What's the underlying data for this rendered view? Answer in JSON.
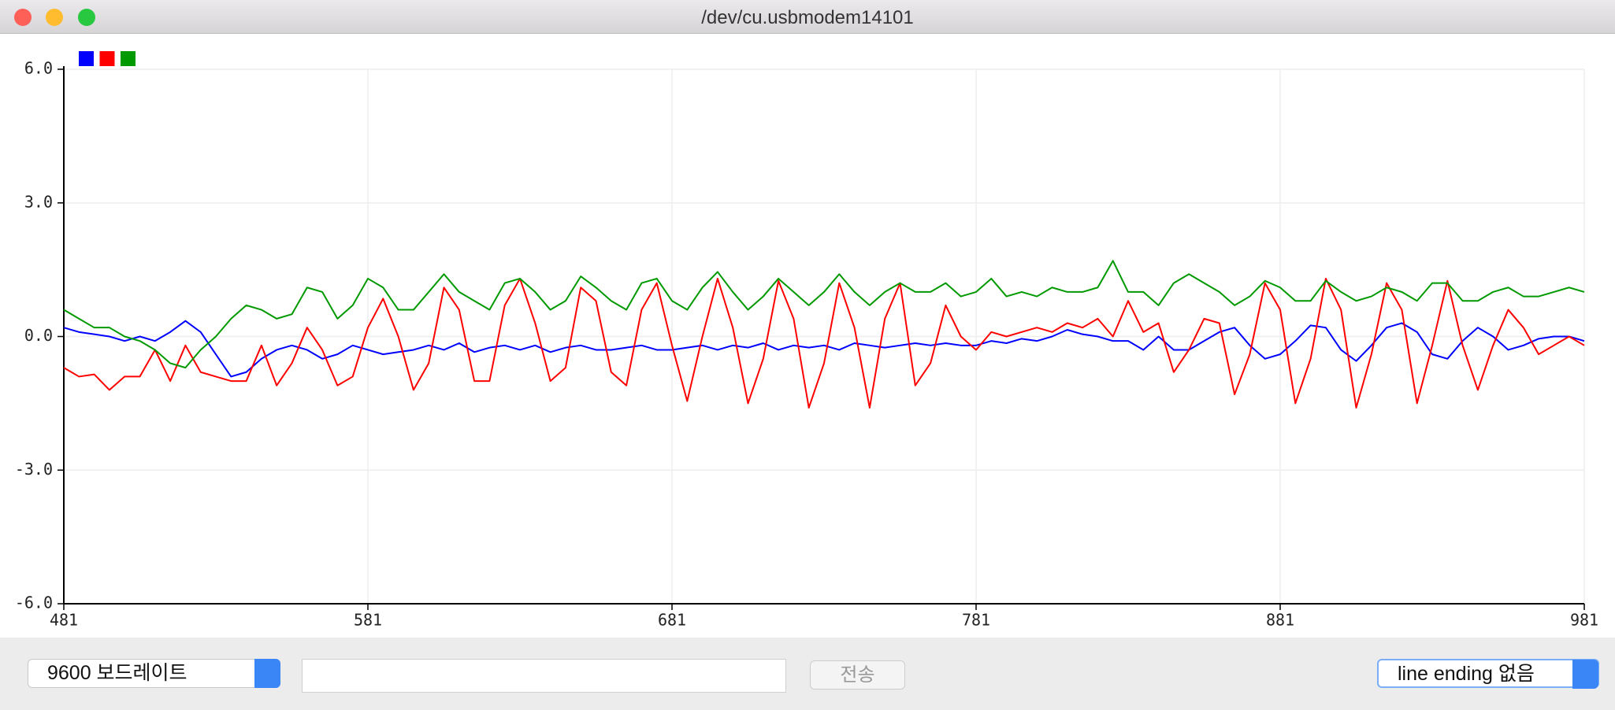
{
  "window": {
    "title": "/dev/cu.usbmodem14101"
  },
  "controls": {
    "baud": "9600 보드레이트",
    "send": "전송",
    "line_ending": "line ending 없음"
  },
  "chart_data": {
    "type": "line",
    "x": [
      481,
      486,
      491,
      496,
      501,
      506,
      511,
      516,
      521,
      526,
      531,
      536,
      541,
      546,
      551,
      556,
      561,
      566,
      571,
      576,
      581,
      586,
      591,
      596,
      601,
      606,
      611,
      616,
      621,
      626,
      631,
      636,
      641,
      646,
      651,
      656,
      661,
      666,
      671,
      676,
      681,
      686,
      691,
      696,
      701,
      706,
      711,
      716,
      721,
      726,
      731,
      736,
      741,
      746,
      751,
      756,
      761,
      766,
      771,
      776,
      781,
      786,
      791,
      796,
      801,
      806,
      811,
      816,
      821,
      826,
      831,
      836,
      841,
      846,
      851,
      856,
      861,
      866,
      871,
      876,
      881,
      886,
      891,
      896,
      901,
      906,
      911,
      916,
      921,
      926,
      931,
      936,
      941,
      946,
      951,
      956,
      961,
      966,
      971,
      976,
      981
    ],
    "series": [
      {
        "color": "#0000ff",
        "values": [
          0.2,
          0.1,
          0.05,
          0.0,
          -0.1,
          0.0,
          -0.1,
          0.1,
          0.35,
          0.1,
          -0.4,
          -0.9,
          -0.8,
          -0.5,
          -0.3,
          -0.2,
          -0.3,
          -0.5,
          -0.4,
          -0.2,
          -0.3,
          -0.4,
          -0.35,
          -0.3,
          -0.2,
          -0.3,
          -0.15,
          -0.35,
          -0.25,
          -0.2,
          -0.3,
          -0.2,
          -0.35,
          -0.25,
          -0.2,
          -0.3,
          -0.3,
          -0.25,
          -0.2,
          -0.3,
          -0.3,
          -0.25,
          -0.2,
          -0.3,
          -0.2,
          -0.25,
          -0.15,
          -0.3,
          -0.2,
          -0.25,
          -0.2,
          -0.3,
          -0.15,
          -0.2,
          -0.25,
          -0.2,
          -0.15,
          -0.2,
          -0.15,
          -0.2,
          -0.2,
          -0.1,
          -0.15,
          -0.05,
          -0.1,
          0.0,
          0.15,
          0.05,
          0.0,
          -0.1,
          -0.1,
          -0.3,
          0.0,
          -0.3,
          -0.3,
          -0.1,
          0.1,
          0.2,
          -0.2,
          -0.5,
          -0.4,
          -0.1,
          0.25,
          0.2,
          -0.3,
          -0.55,
          -0.2,
          0.2,
          0.3,
          0.1,
          -0.4,
          -0.5,
          -0.1,
          0.2,
          0.0,
          -0.3,
          -0.2,
          -0.05,
          0.0,
          0.0,
          -0.1
        ]
      },
      {
        "color": "#ff0000",
        "values": [
          -0.7,
          -0.9,
          -0.85,
          -1.2,
          -0.9,
          -0.9,
          -0.3,
          -1.0,
          -0.2,
          -0.8,
          -0.9,
          -1.0,
          -1.0,
          -0.2,
          -1.1,
          -0.6,
          0.2,
          -0.3,
          -1.1,
          -0.9,
          0.2,
          0.85,
          0.0,
          -1.2,
          -0.6,
          1.1,
          0.6,
          -1.0,
          -1.0,
          0.7,
          1.3,
          0.3,
          -1.0,
          -0.7,
          1.1,
          0.8,
          -0.8,
          -1.1,
          0.6,
          1.2,
          -0.2,
          -1.45,
          0.0,
          1.3,
          0.2,
          -1.5,
          -0.5,
          1.25,
          0.4,
          -1.6,
          -0.6,
          1.2,
          0.2,
          -1.6,
          0.4,
          1.2,
          -1.1,
          -0.6,
          0.7,
          0.0,
          -0.3,
          0.1,
          0.0,
          0.1,
          0.2,
          0.1,
          0.3,
          0.2,
          0.4,
          0.0,
          0.8,
          0.1,
          0.3,
          -0.8,
          -0.3,
          0.4,
          0.3,
          -1.3,
          -0.4,
          1.2,
          0.6,
          -1.5,
          -0.5,
          1.3,
          0.6,
          -1.6,
          -0.4,
          1.2,
          0.6,
          -1.5,
          -0.2,
          1.25,
          -0.2,
          -1.2,
          -0.2,
          0.6,
          0.2,
          -0.4,
          -0.2,
          0.0,
          -0.2
        ]
      },
      {
        "color": "#009900",
        "values": [
          0.6,
          0.4,
          0.2,
          0.2,
          0.0,
          -0.1,
          -0.3,
          -0.6,
          -0.7,
          -0.3,
          0.0,
          0.4,
          0.7,
          0.6,
          0.4,
          0.5,
          1.1,
          1.0,
          0.4,
          0.7,
          1.3,
          1.1,
          0.6,
          0.6,
          1.0,
          1.4,
          1.0,
          0.8,
          0.6,
          1.2,
          1.3,
          1.0,
          0.6,
          0.8,
          1.35,
          1.1,
          0.8,
          0.6,
          1.2,
          1.3,
          0.8,
          0.6,
          1.1,
          1.45,
          1.0,
          0.6,
          0.9,
          1.3,
          1.0,
          0.7,
          1.0,
          1.4,
          1.0,
          0.7,
          1.0,
          1.2,
          1.0,
          1.0,
          1.2,
          0.9,
          1.0,
          1.3,
          0.9,
          1.0,
          0.9,
          1.1,
          1.0,
          1.0,
          1.1,
          1.7,
          1.0,
          1.0,
          0.7,
          1.2,
          1.4,
          1.2,
          1.0,
          0.7,
          0.9,
          1.25,
          1.1,
          0.8,
          0.8,
          1.25,
          1.0,
          0.8,
          0.9,
          1.1,
          1.0,
          0.8,
          1.2,
          1.2,
          0.8,
          0.8,
          1.0,
          1.1,
          0.9,
          0.9,
          1.0,
          1.1,
          1.0
        ]
      }
    ],
    "xlim": [
      481,
      981
    ],
    "xticks": [
      481,
      581,
      681,
      781,
      881,
      981
    ],
    "ylim": [
      -6,
      6
    ],
    "yticks": [
      {
        "value": -6,
        "label": "-6.0"
      },
      {
        "value": -3,
        "label": "-3.0"
      },
      {
        "value": 0,
        "label": "0.0"
      },
      {
        "value": 3,
        "label": "3.0"
      },
      {
        "value": 6,
        "label": "6.0"
      }
    ],
    "grid": true
  }
}
